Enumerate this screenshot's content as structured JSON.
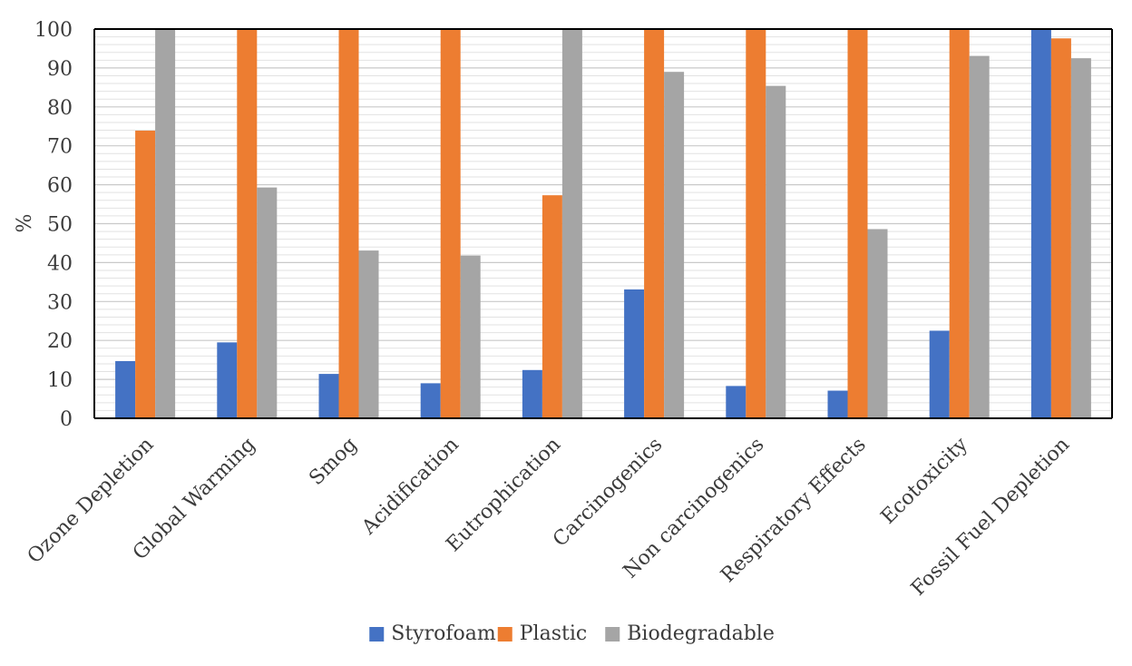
{
  "chart_data": {
    "type": "bar",
    "title": "",
    "xlabel": "",
    "ylabel": "%",
    "ylim": [
      0,
      100
    ],
    "yticks": [
      0,
      10,
      20,
      30,
      40,
      50,
      60,
      70,
      80,
      90,
      100
    ],
    "grid": "horizontal minor lines",
    "legend_position": "bottom",
    "categories": [
      "Ozone Depletion",
      "Global Warming",
      "Smog",
      "Acidification",
      "Eutrophication",
      "Carcinogenics",
      "Non carcinogenics",
      "Respiratory Effects",
      "Ecotoxicity",
      "Fossil Fuel Depletion"
    ],
    "series": [
      {
        "name": "Styrofoam",
        "color": "#4472c4",
        "values": [
          14.7,
          19.5,
          11.4,
          9.0,
          12.4,
          33.1,
          8.3,
          7.1,
          22.5,
          100
        ]
      },
      {
        "name": "Plastic",
        "color": "#ed7d31",
        "values": [
          73.9,
          100,
          100,
          100,
          57.3,
          100,
          100,
          100,
          100,
          97.6
        ]
      },
      {
        "name": "Biodegradable",
        "color": "#a5a5a5",
        "values": [
          100,
          59.3,
          43.1,
          41.8,
          100,
          89.0,
          85.4,
          48.6,
          93.1,
          92.5
        ]
      }
    ]
  }
}
